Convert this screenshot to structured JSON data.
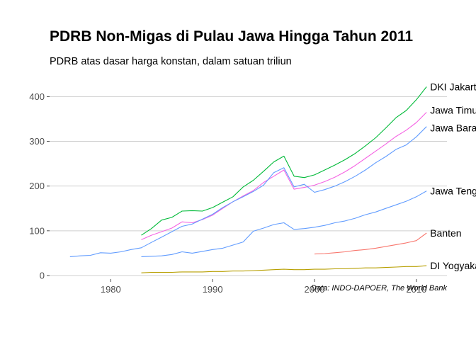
{
  "chart_data": {
    "type": "line",
    "title": "PDRB Non-Migas di Pulau Jawa Hingga Tahun 2011",
    "subtitle": "PDRB atas dasar harga konstan, dalam satuan triliun",
    "caption": "Data: INDO-DAPOER, The World Bank",
    "xlabel": "",
    "ylabel": "",
    "xlim": [
      1974,
      2013
    ],
    "ylim": [
      -8,
      445
    ],
    "x_ticks": [
      1980,
      1990,
      2000,
      2010
    ],
    "y_ticks": [
      0,
      100,
      200,
      300,
      400
    ],
    "grid": "horizontal-major",
    "legend": "direct labels at line ends",
    "series": [
      {
        "name": "DKI Jakarta",
        "color": "#00BA38",
        "x": [
          1983,
          1984,
          1985,
          1986,
          1987,
          1988,
          1989,
          1990,
          1991,
          1992,
          1993,
          1994,
          1995,
          1996,
          1997,
          1998,
          1999,
          2000,
          2001,
          2002,
          2003,
          2004,
          2005,
          2006,
          2007,
          2008,
          2009,
          2010,
          2011
        ],
        "y": [
          90,
          105,
          124,
          130,
          144,
          145,
          144,
          152,
          164,
          176,
          198,
          213,
          233,
          254,
          267,
          222,
          219,
          225,
          236,
          247,
          259,
          273,
          290,
          308,
          330,
          353,
          369,
          393,
          422
        ]
      },
      {
        "name": "Jawa Timur",
        "color": "#F564E3",
        "x": [
          1983,
          1984,
          1985,
          1986,
          1987,
          1988,
          1989,
          1990,
          1991,
          1992,
          1993,
          1994,
          1995,
          1996,
          1997,
          1998,
          1999,
          2000,
          2001,
          2002,
          2003,
          2004,
          2005,
          2006,
          2007,
          2008,
          2009,
          2010,
          2011
        ],
        "y": [
          80,
          90,
          98,
          106,
          120,
          118,
          125,
          135,
          150,
          165,
          178,
          190,
          208,
          222,
          236,
          193,
          197,
          202,
          210,
          220,
          232,
          246,
          262,
          278,
          294,
          311,
          325,
          342,
          365
        ]
      },
      {
        "name": "Jawa Barat",
        "color": "#619CFF",
        "x": [
          1976,
          1977,
          1978,
          1979,
          1980,
          1981,
          1982,
          1983,
          1984,
          1985,
          1986,
          1987,
          1988,
          1989,
          1990,
          1991,
          1992,
          1993,
          1994,
          1995,
          1996,
          1997,
          1998,
          1999,
          2000,
          2001,
          2002,
          2003,
          2004,
          2005,
          2006,
          2007,
          2008,
          2009,
          2010,
          2011
        ],
        "y": [
          42,
          44,
          45,
          51,
          50,
          53,
          58,
          62,
          74,
          86,
          98,
          110,
          115,
          126,
          137,
          152,
          165,
          176,
          188,
          202,
          230,
          241,
          198,
          204,
          186,
          192,
          200,
          210,
          222,
          236,
          252,
          266,
          282,
          292,
          310,
          333
        ]
      },
      {
        "name": "Jawa Tengah",
        "color": "#619CFF",
        "x": [
          1983,
          1984,
          1985,
          1986,
          1987,
          1988,
          1989,
          1990,
          1991,
          1992,
          1993,
          1994,
          1995,
          1996,
          1997,
          1998,
          1999,
          2000,
          2001,
          2002,
          2003,
          2004,
          2005,
          2006,
          2007,
          2008,
          2009,
          2010,
          2011
        ],
        "y": [
          42,
          43,
          44,
          47,
          53,
          50,
          54,
          58,
          61,
          68,
          75,
          99,
          106,
          114,
          118,
          103,
          105,
          108,
          112,
          118,
          122,
          128,
          136,
          142,
          150,
          158,
          166,
          176,
          189
        ]
      },
      {
        "name": "Banten",
        "color": "#F8766D",
        "x": [
          2000,
          2001,
          2002,
          2003,
          2004,
          2005,
          2006,
          2007,
          2008,
          2009,
          2010,
          2011
        ],
        "y": [
          48,
          49,
          51,
          53,
          56,
          58,
          61,
          65,
          69,
          73,
          78,
          95
        ]
      },
      {
        "name": "DI Yogyakarta",
        "color": "#B79F00",
        "x": [
          1983,
          1984,
          1985,
          1986,
          1987,
          1988,
          1989,
          1990,
          1991,
          1992,
          1993,
          1994,
          1995,
          1996,
          1997,
          1998,
          1999,
          2000,
          2001,
          2002,
          2003,
          2004,
          2005,
          2006,
          2007,
          2008,
          2009,
          2010,
          2011
        ],
        "y": [
          6,
          7,
          7,
          7,
          8,
          8,
          8,
          9,
          9,
          10,
          10,
          11,
          12,
          13,
          14,
          13,
          13,
          14,
          14,
          15,
          15,
          16,
          17,
          17,
          18,
          19,
          20,
          20,
          22
        ]
      }
    ]
  }
}
